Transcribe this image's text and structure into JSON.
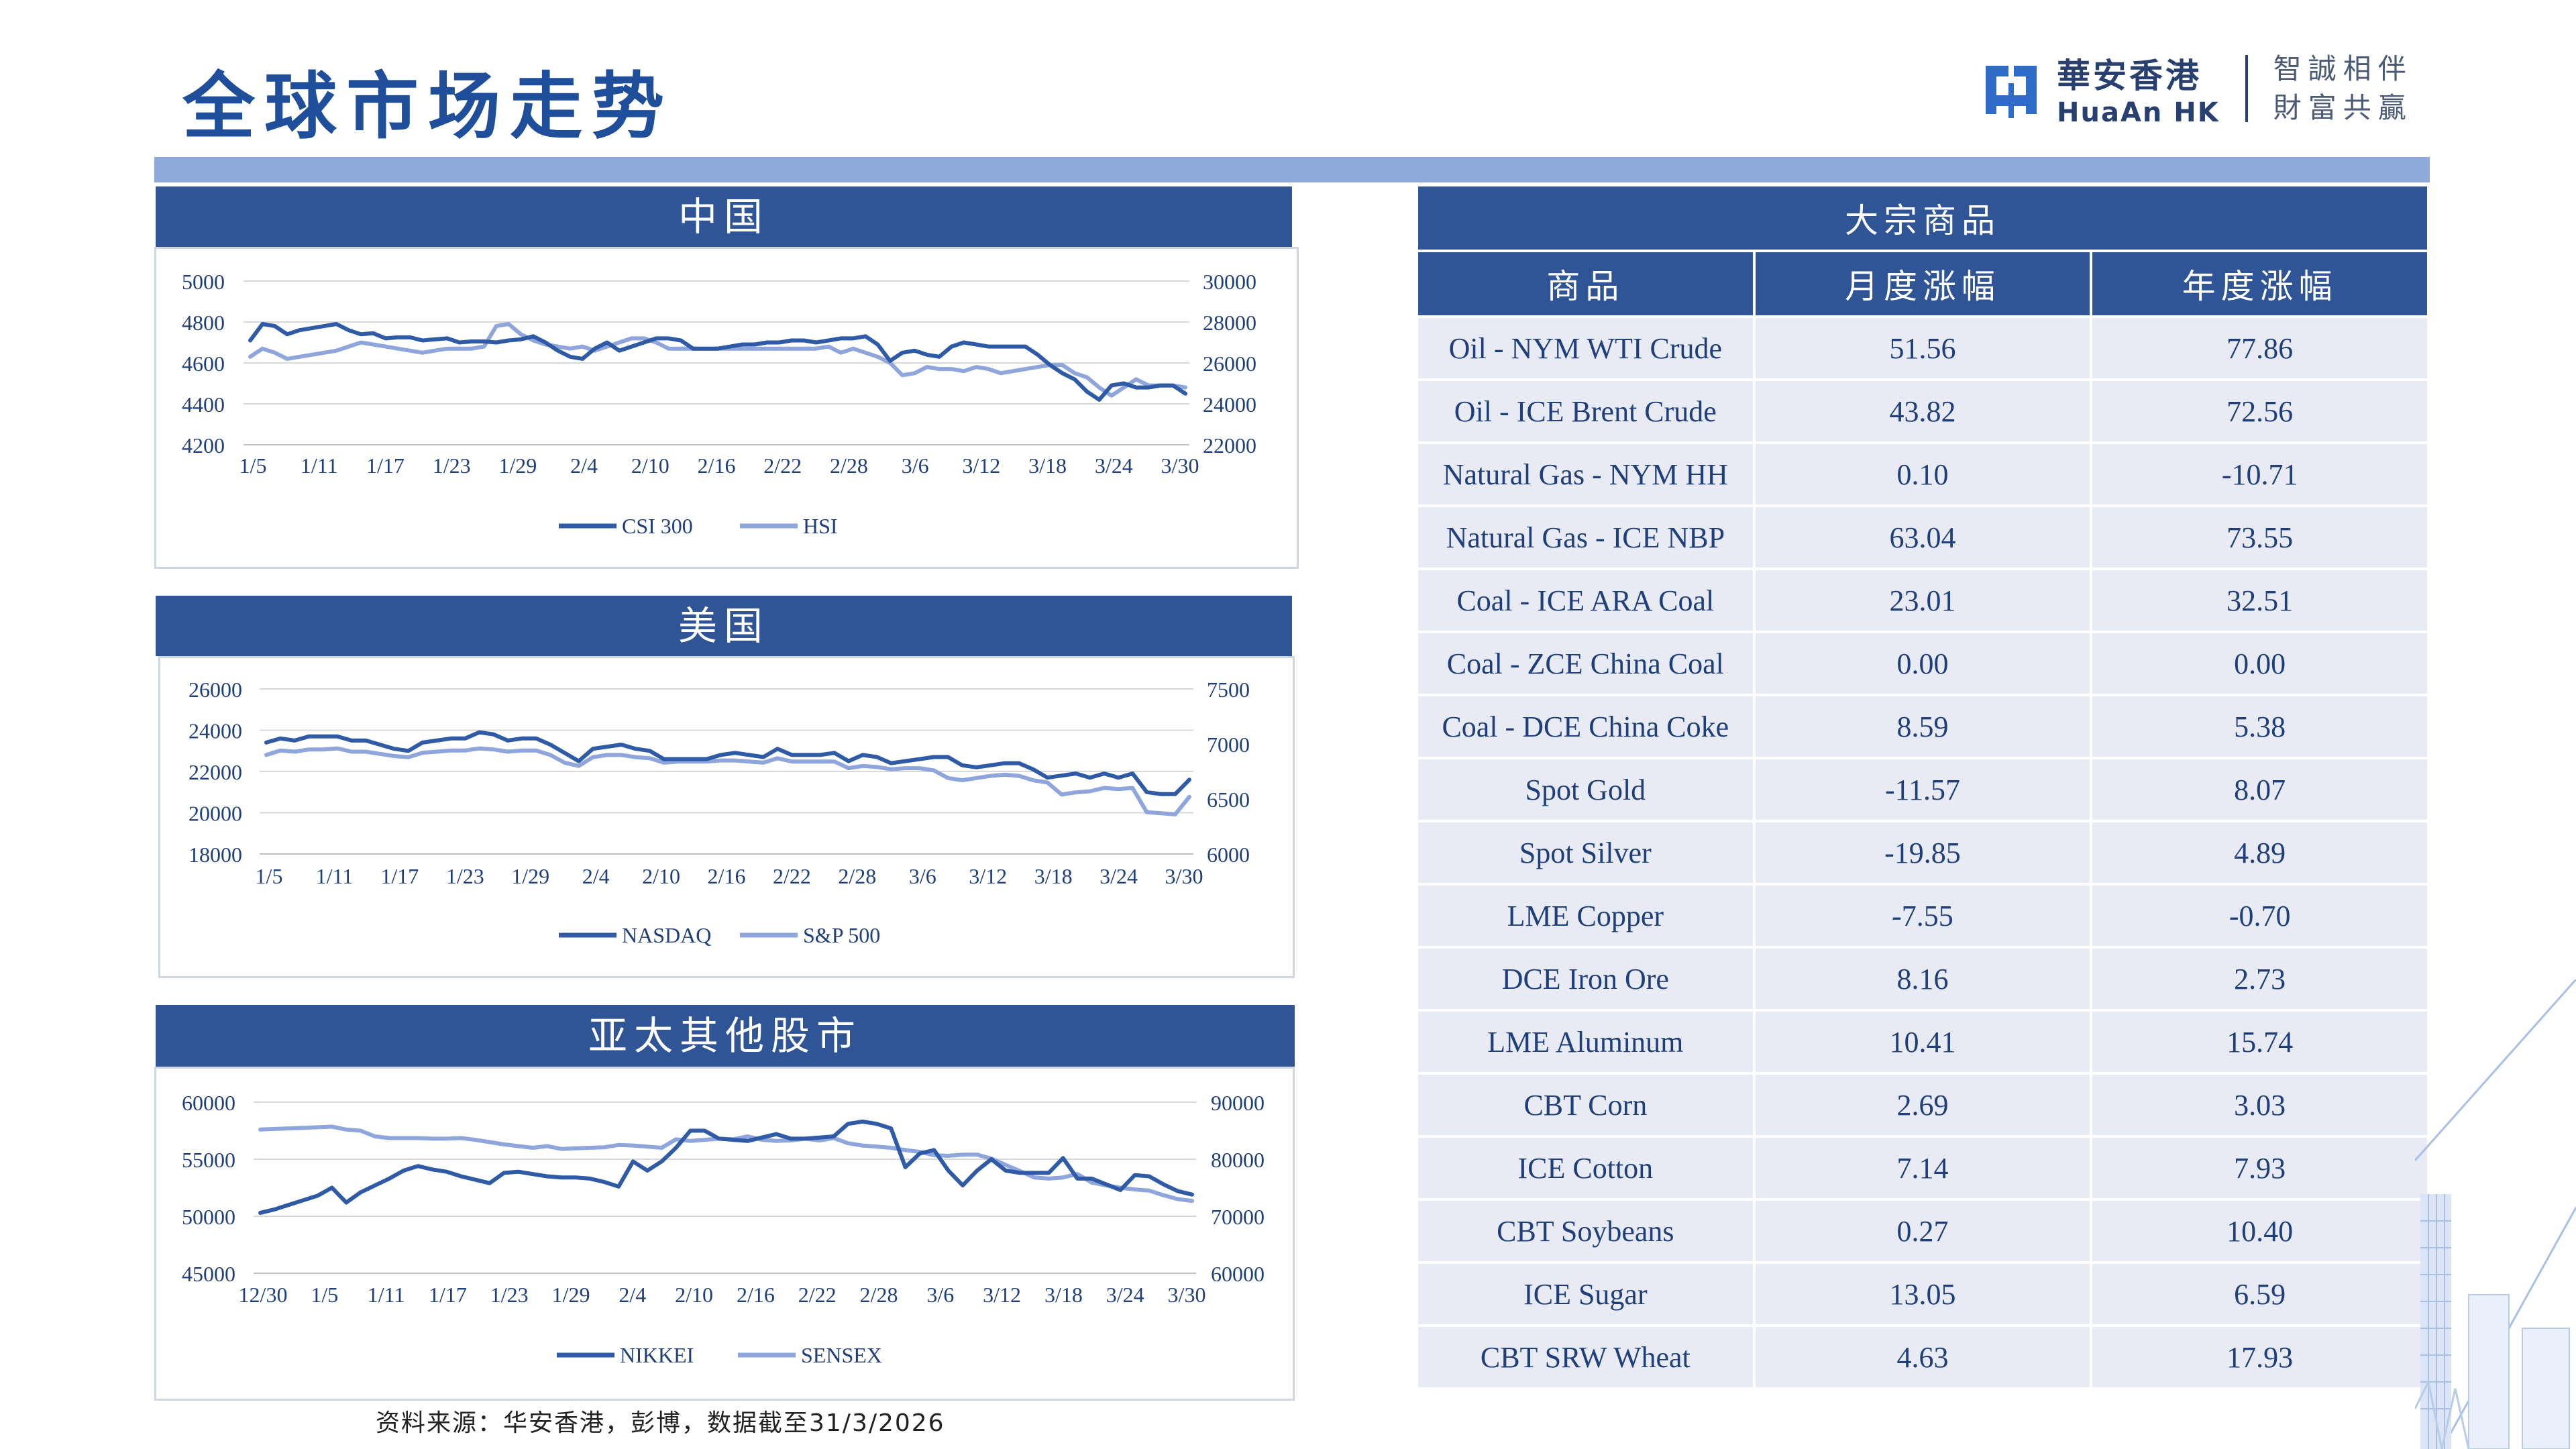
{
  "page": {
    "title": "全球市场走势",
    "source": "资料来源：华安香港，彭博，数据截至31/3/2026"
  },
  "logo": {
    "cn": "華安香港",
    "en": "HuaAn HK",
    "slogan_1": "智誠相伴",
    "slogan_2": "財富共贏"
  },
  "colors": {
    "accent": "#2f5597",
    "series_dark": "#2e5aa6",
    "series_light": "#8fa6dc",
    "band": "#8eaadc",
    "cell_bg": "#e8ebf4"
  },
  "chart_data": [
    {
      "id": "china",
      "panel_title": "中国",
      "type": "line",
      "x_ticks": [
        "1/5",
        "1/11",
        "1/17",
        "1/23",
        "1/29",
        "2/4",
        "2/10",
        "2/16",
        "2/22",
        "2/28",
        "3/6",
        "3/12",
        "3/18",
        "3/24",
        "3/30"
      ],
      "ylim_left": [
        4200,
        5000
      ],
      "yticks_left": [
        "5000",
        "4800",
        "4600",
        "4400",
        "4200"
      ],
      "ylim_right": [
        22000,
        30000
      ],
      "yticks_right": [
        "30000",
        "28000",
        "26000",
        "24000",
        "22000"
      ],
      "series": [
        {
          "name": "CSI 300",
          "axis": "left",
          "color": "#2e5aa6",
          "values": [
            4710,
            4790,
            4780,
            4740,
            4760,
            4770,
            4780,
            4790,
            4760,
            4740,
            4745,
            4720,
            4725,
            4725,
            4710,
            4715,
            4720,
            4700,
            4705,
            4705,
            4700,
            4710,
            4715,
            4730,
            4700,
            4660,
            4630,
            4620,
            4670,
            4700,
            4660,
            4680,
            4700,
            4720,
            4720,
            4710,
            4670,
            4670,
            4670,
            4680,
            4690,
            4690,
            4700,
            4700,
            4710,
            4710,
            4700,
            4710,
            4720,
            4720,
            4730,
            4690,
            4610,
            4650,
            4660,
            4640,
            4630,
            4680,
            4700,
            4690,
            4680,
            4680,
            4680,
            4680,
            4640,
            4590,
            4550,
            4520,
            4460,
            4420,
            4490,
            4500,
            4480,
            4480,
            4490,
            4490,
            4450
          ]
        },
        {
          "name": "HSI",
          "axis": "right",
          "color": "#8fa6dc",
          "values": [
            26300,
            26700,
            26500,
            26200,
            26300,
            26400,
            26500,
            26600,
            26800,
            27000,
            26900,
            26800,
            26700,
            26600,
            26500,
            26600,
            26700,
            26700,
            26700,
            26800,
            27800,
            27900,
            27400,
            27100,
            26900,
            26800,
            26700,
            26800,
            26600,
            26800,
            27000,
            27200,
            27200,
            27000,
            26700,
            26700,
            26700,
            26700,
            26700,
            26700,
            26700,
            26700,
            26700,
            26700,
            26700,
            26700,
            26700,
            26800,
            26500,
            26700,
            26500,
            26300,
            26000,
            25400,
            25500,
            25800,
            25700,
            25700,
            25600,
            25800,
            25700,
            25500,
            25600,
            25700,
            25800,
            25900,
            25900,
            25500,
            25300,
            24800,
            24400,
            24800,
            25200,
            24900,
            24900,
            24900,
            24800
          ]
        }
      ],
      "legend": [
        "CSI 300",
        "HSI"
      ],
      "legend_position": "bottom",
      "grid": "horizontal"
    },
    {
      "id": "us",
      "panel_title": "美国",
      "type": "line",
      "x_ticks": [
        "1/5",
        "1/11",
        "1/17",
        "1/23",
        "1/29",
        "2/4",
        "2/10",
        "2/16",
        "2/22",
        "2/28",
        "3/6",
        "3/12",
        "3/18",
        "3/24",
        "3/30"
      ],
      "ylim_left": [
        18000,
        26000
      ],
      "yticks_left": [
        "26000",
        "24000",
        "22000",
        "20000",
        "18000"
      ],
      "ylim_right": [
        6000,
        7500
      ],
      "yticks_right": [
        "7500",
        "7000",
        "6500",
        "6000"
      ],
      "series": [
        {
          "name": "NASDAQ",
          "axis": "left",
          "color": "#2e5aa6",
          "values": [
            23400,
            23600,
            23500,
            23700,
            23700,
            23700,
            23500,
            23500,
            23300,
            23100,
            23000,
            23400,
            23500,
            23600,
            23600,
            23900,
            23800,
            23500,
            23600,
            23600,
            23300,
            22900,
            22500,
            23100,
            23200,
            23300,
            23100,
            23000,
            22600,
            22600,
            22600,
            22600,
            22800,
            22900,
            22800,
            22700,
            23100,
            22800,
            22800,
            22800,
            22900,
            22500,
            22800,
            22700,
            22400,
            22500,
            22600,
            22700,
            22700,
            22300,
            22200,
            22300,
            22400,
            22400,
            22100,
            21700,
            21800,
            21900,
            21700,
            21900,
            21700,
            21900,
            21000,
            20900,
            20900,
            21600
          ]
        },
        {
          "name": "S&P 500",
          "axis": "right",
          "color": "#8fa6dc",
          "values": [
            6900,
            6940,
            6930,
            6950,
            6950,
            6960,
            6930,
            6930,
            6910,
            6890,
            6880,
            6920,
            6930,
            6940,
            6940,
            6960,
            6950,
            6930,
            6940,
            6940,
            6900,
            6830,
            6800,
            6880,
            6900,
            6900,
            6880,
            6870,
            6830,
            6840,
            6840,
            6840,
            6850,
            6850,
            6840,
            6830,
            6870,
            6840,
            6840,
            6840,
            6840,
            6780,
            6800,
            6790,
            6770,
            6780,
            6780,
            6760,
            6690,
            6670,
            6690,
            6710,
            6720,
            6710,
            6670,
            6650,
            6540,
            6560,
            6570,
            6600,
            6590,
            6600,
            6380,
            6370,
            6360,
            6520
          ]
        }
      ],
      "legend": [
        "NASDAQ",
        "S&P 500"
      ],
      "legend_position": "bottom",
      "grid": "horizontal"
    },
    {
      "id": "apac",
      "panel_title": "亚太其他股市",
      "type": "line",
      "x_ticks": [
        "12/30",
        "1/5",
        "1/11",
        "1/17",
        "1/23",
        "1/29",
        "2/4",
        "2/10",
        "2/16",
        "2/22",
        "2/28",
        "3/6",
        "3/12",
        "3/18",
        "3/24",
        "3/30"
      ],
      "ylim_left": [
        45000,
        60000
      ],
      "yticks_left": [
        "60000",
        "55000",
        "50000",
        "45000"
      ],
      "ylim_right": [
        60000,
        90000
      ],
      "yticks_right": [
        "90000",
        "80000",
        "70000",
        "60000"
      ],
      "series": [
        {
          "name": "NIKKEI",
          "axis": "left",
          "color": "#2e5aa6",
          "values": [
            50300,
            50600,
            51000,
            51400,
            51800,
            52500,
            51200,
            52100,
            52700,
            53300,
            54000,
            54400,
            54100,
            53900,
            53500,
            53200,
            52900,
            53800,
            53900,
            53700,
            53500,
            53400,
            53400,
            53300,
            53000,
            52600,
            54800,
            54000,
            54800,
            56000,
            57500,
            57500,
            56800,
            56700,
            56600,
            56900,
            57200,
            56800,
            56800,
            56900,
            57000,
            58100,
            58300,
            58100,
            57700,
            54300,
            55500,
            55800,
            54000,
            52700,
            54000,
            55000,
            54000,
            53800,
            53800,
            53800,
            55100,
            53300,
            53300,
            52800,
            52300,
            53600,
            53500,
            52800,
            52200,
            51900
          ]
        },
        {
          "name": "SENSEX",
          "axis": "right",
          "color": "#8fa6dc",
          "values": [
            85200,
            85300,
            85400,
            85500,
            85600,
            85700,
            85200,
            85000,
            84000,
            83700,
            83700,
            83700,
            83600,
            83600,
            83700,
            83400,
            83000,
            82600,
            82300,
            82000,
            82300,
            81800,
            81900,
            82000,
            82100,
            82500,
            82400,
            82200,
            82000,
            83500,
            83200,
            83400,
            83600,
            83500,
            84000,
            83400,
            83200,
            83300,
            83600,
            83300,
            83700,
            82800,
            82400,
            82200,
            82000,
            81600,
            81300,
            80700,
            80600,
            80800,
            80800,
            80100,
            79000,
            77900,
            76800,
            76600,
            76800,
            77400,
            75900,
            75400,
            75000,
            74700,
            74500,
            73700,
            73000,
            72700
          ]
        }
      ],
      "legend": [
        "NIKKEI",
        "SENSEX"
      ],
      "legend_position": "bottom",
      "grid": "horizontal"
    }
  ],
  "commodities": {
    "title": "大宗商品",
    "headers": [
      "商品",
      "月度涨幅",
      "年度涨幅"
    ],
    "rows": [
      [
        "Oil - NYM WTI Crude",
        "51.56",
        "77.86"
      ],
      [
        "Oil - ICE Brent Crude",
        "43.82",
        "72.56"
      ],
      [
        "Natural Gas - NYM HH",
        "0.10",
        "-10.71"
      ],
      [
        "Natural Gas - ICE NBP",
        "63.04",
        "73.55"
      ],
      [
        "Coal - ICE ARA Coal",
        "23.01",
        "32.51"
      ],
      [
        "Coal - ZCE China Coal",
        "0.00",
        "0.00"
      ],
      [
        "Coal - DCE China Coke",
        "8.59",
        "5.38"
      ],
      [
        "Spot Gold",
        "-11.57",
        "8.07"
      ],
      [
        "Spot Silver",
        "-19.85",
        "4.89"
      ],
      [
        "LME Copper",
        "-7.55",
        "-0.70"
      ],
      [
        "DCE Iron Ore",
        "8.16",
        "2.73"
      ],
      [
        "LME Aluminum",
        "10.41",
        "15.74"
      ],
      [
        "CBT Corn",
        "2.69",
        "3.03"
      ],
      [
        "ICE Cotton",
        "7.14",
        "7.93"
      ],
      [
        "CBT Soybeans",
        "0.27",
        "10.40"
      ],
      [
        "ICE Sugar",
        "13.05",
        "6.59"
      ],
      [
        "CBT SRW Wheat",
        "4.63",
        "17.93"
      ]
    ]
  }
}
